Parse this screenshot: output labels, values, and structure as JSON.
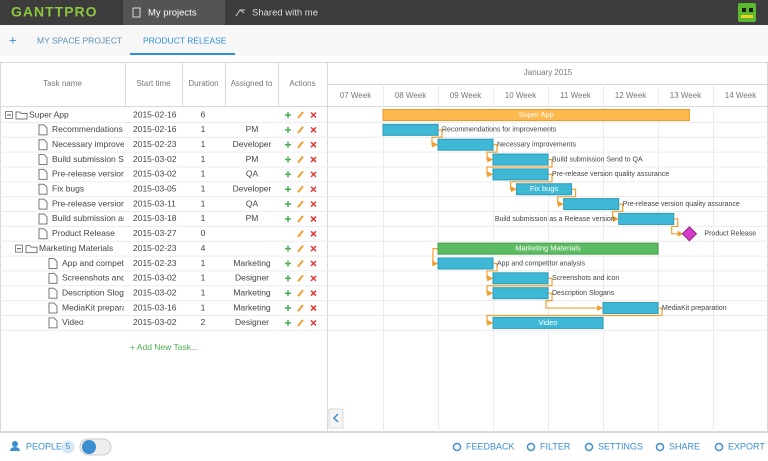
{
  "header": {
    "logo": "GANTTPRO",
    "tabs": [
      "My projects",
      "Shared with me"
    ]
  },
  "project_tabs": {
    "add": "+",
    "tabs": [
      "MY SPACE PROJECT",
      "PRODUCT RELEASE"
    ]
  },
  "table": {
    "columns": [
      "Task name",
      "Start time",
      "Duration",
      "Assigned to",
      "Actions"
    ],
    "tasks": [
      {
        "name": "Super App",
        "start": "2015-02-16",
        "duration": 6,
        "children": [
          {
            "name": "Recommendations for improvements",
            "start": "2015-02-16",
            "duration": 1,
            "assigned": "PM"
          },
          {
            "name": "Necessary improvements",
            "start": "2015-02-23",
            "duration": 1,
            "assigned": "Developer"
          },
          {
            "name": "Build submission Send to QA",
            "start": "2015-03-02",
            "duration": 1,
            "assigned": "PM"
          },
          {
            "name": "Pre-release version quality assurance",
            "start": "2015-03-02",
            "duration": 1,
            "assigned": "QA"
          },
          {
            "name": "Fix bugs",
            "start": "2015-03-05",
            "duration": 1,
            "assigned": "Developer"
          },
          {
            "name": "Pre-release version quality assurance",
            "start": "2015-03-11",
            "duration": 1,
            "assigned": "QA"
          },
          {
            "name": "Build submission as a Release version",
            "start": "2015-03-18",
            "duration": 1,
            "assigned": "PM"
          },
          {
            "name": "Product Release",
            "start": "2015-03-27",
            "duration": 0
          },
          {
            "name": "Marketing Materials",
            "start": "2015-02-23",
            "duration": 4,
            "children": [
              {
                "name": "App and competitor analysis",
                "start": "2015-02-23",
                "duration": 1,
                "assigned": "Marketing"
              },
              {
                "name": "Screenshots and icon",
                "start": "2015-03-02",
                "duration": 1,
                "assigned": "Designer"
              },
              {
                "name": "Description Slogans",
                "start": "2015-03-02",
                "duration": 1,
                "assigned": "Marketing"
              },
              {
                "name": "MediaKit preparation",
                "start": "2015-03-16",
                "duration": 1,
                "assigned": "Marketing"
              },
              {
                "name": "Video",
                "start": "2015-03-02",
                "duration": 2,
                "assigned": "Designer"
              }
            ]
          }
        ]
      }
    ],
    "add_task": "+ Add New Task..."
  },
  "timeline": {
    "month": "January 2015",
    "weeks": [
      "07 Week",
      "08 Week",
      "09 Week",
      "10 Week",
      "11 Week",
      "12 Week",
      "13 Week",
      "14 Week"
    ]
  },
  "footer": {
    "people": "PEOPLE",
    "people_count": 5,
    "actions": [
      "FEEDBACK",
      "FILTER",
      "SETTINGS",
      "SHARE",
      "EXPORT"
    ]
  }
}
